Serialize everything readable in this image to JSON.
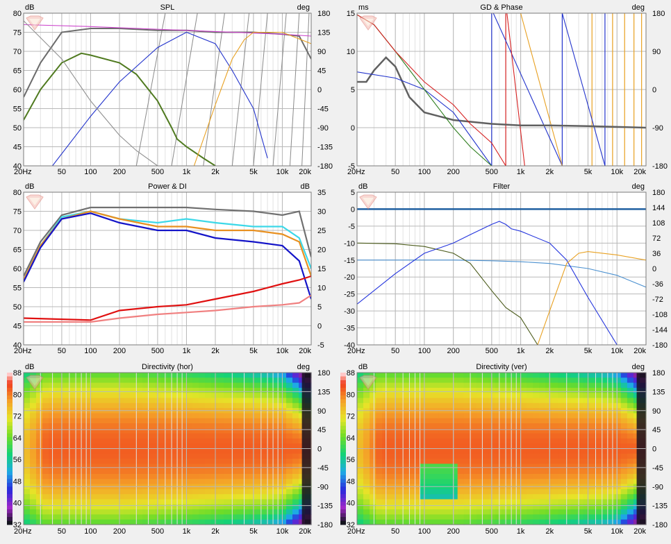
{
  "xticks": [
    "20Hz",
    "50",
    "100",
    "200",
    "500",
    "1k",
    "2k",
    "5k",
    "10k",
    "20k"
  ],
  "panels": {
    "spl": {
      "title": "SPL",
      "left_unit": "dB",
      "right_unit": "deg",
      "left_ticks": [
        "80",
        "75",
        "70",
        "65",
        "60",
        "55",
        "50",
        "45",
        "40"
      ],
      "right_ticks": [
        "180",
        "135",
        "90",
        "45",
        "0",
        "-45",
        "-90",
        "-135",
        "-180"
      ]
    },
    "gd": {
      "title": "GD & Phase",
      "left_unit": "ms",
      "right_unit": "deg",
      "left_ticks": [
        "15",
        "10",
        "5",
        "0",
        "-5"
      ],
      "right_ticks": [
        "180",
        "90",
        "0",
        "-90",
        "-180"
      ]
    },
    "power": {
      "title": "Power & DI",
      "left_unit": "dB",
      "right_unit": "dB",
      "left_ticks": [
        "80",
        "75",
        "70",
        "65",
        "60",
        "55",
        "50",
        "45",
        "40"
      ],
      "right_ticks": [
        "35",
        "30",
        "25",
        "20",
        "15",
        "10",
        "5",
        "0",
        "-5"
      ]
    },
    "filter": {
      "title": "Filter",
      "left_unit": "dB",
      "right_unit": "deg",
      "left_ticks": [
        "5",
        "0",
        "-5",
        "-10",
        "-15",
        "-20",
        "-25",
        "-30",
        "-35",
        "-40"
      ],
      "right_ticks": [
        "180",
        "144",
        "108",
        "72",
        "36",
        "0",
        "-36",
        "-72",
        "-108",
        "-144",
        "-180"
      ]
    },
    "dirh": {
      "title": "Directivity (hor)",
      "left_unit": "dB",
      "right_unit": "deg",
      "left_ticks": [
        "88",
        "80",
        "72",
        "64",
        "56",
        "48",
        "40",
        "32"
      ],
      "right_ticks": [
        "180",
        "135",
        "90",
        "45",
        "0",
        "-45",
        "-90",
        "-135",
        "-180"
      ]
    },
    "dirv": {
      "title": "Directivity (ver)",
      "left_unit": "dB",
      "right_unit": "deg",
      "left_ticks": [
        "88",
        "80",
        "72",
        "64",
        "56",
        "48",
        "40",
        "32"
      ],
      "right_ticks": [
        "180",
        "135",
        "90",
        "45",
        "0",
        "-45",
        "-90",
        "-135",
        "-180"
      ]
    }
  },
  "chart_data": [
    {
      "type": "line",
      "title": "SPL",
      "xscale": "log",
      "xlim": [
        20,
        20000
      ],
      "ylabel": "dB",
      "ylim": [
        40,
        80
      ],
      "y2label": "deg",
      "y2lim": [
        -180,
        180
      ],
      "series": [
        {
          "color": "#6b6b6b",
          "x": [
            20,
            30,
            50,
            100,
            200,
            500,
            1000,
            2000,
            5000,
            10000,
            15000,
            20000
          ],
          "y": [
            58,
            67,
            75,
            76,
            76,
            75.5,
            75.5,
            75,
            75,
            74.5,
            74,
            68
          ]
        },
        {
          "color": "#4f7a1f",
          "x": [
            20,
            30,
            50,
            80,
            100,
            200,
            300,
            500,
            700,
            800,
            1000,
            1500,
            2000
          ],
          "y": [
            52,
            60,
            67,
            69.5,
            69,
            67,
            64,
            57,
            50,
            47,
            45,
            42,
            40
          ]
        },
        {
          "color": "#cc44cc",
          "x": [
            20,
            100,
            1000,
            10000,
            20000
          ],
          "y": [
            77,
            76.5,
            75.5,
            74.5,
            74
          ]
        },
        {
          "color": "#2233cc",
          "x": [
            40,
            100,
            200,
            500,
            1000,
            2000,
            3000,
            5000,
            7000
          ],
          "y": [
            40,
            53,
            62,
            71,
            75,
            72,
            65,
            55,
            42
          ]
        },
        {
          "color": "#e8a020",
          "x": [
            1200,
            2000,
            3000,
            4000,
            5000,
            10000,
            20000
          ],
          "y": [
            40,
            56,
            68,
            73,
            75,
            75,
            72
          ]
        },
        {
          "color": "#909090",
          "x": [
            20,
            50,
            100,
            200,
            300,
            500
          ],
          "y": [
            78,
            68,
            57,
            48,
            44,
            40
          ]
        }
      ]
    },
    {
      "type": "line",
      "title": "GD & Phase",
      "xscale": "log",
      "xlim": [
        20,
        20000
      ],
      "ylabel": "ms",
      "ylim": [
        -5,
        15
      ],
      "y2label": "deg",
      "y2lim": [
        -180,
        180
      ],
      "series": [
        {
          "color": "#606060",
          "x": [
            20,
            25,
            30,
            40,
            50,
            70,
            100,
            200,
            500,
            1000,
            2000,
            5000,
            10000,
            20000
          ],
          "y": [
            6,
            6,
            7.5,
            9.2,
            8,
            4,
            2,
            1,
            0.5,
            0.3,
            0.3,
            0.2,
            0.1,
            0
          ]
        },
        {
          "color": "#2233cc",
          "x": [
            20,
            50,
            100,
            200,
            500
          ],
          "y": [
            7.3,
            6.5,
            5,
            2,
            -5
          ]
        },
        {
          "color": "#2e7d1e",
          "x": [
            20,
            30,
            50,
            100,
            200,
            300,
            500
          ],
          "y": [
            14.8,
            13.5,
            10,
            5,
            0,
            -2.5,
            -5
          ]
        },
        {
          "color": "#d62020",
          "x": [
            20,
            30,
            50,
            100,
            200,
            300,
            500,
            700
          ],
          "y": [
            14.8,
            13.5,
            10,
            6,
            3,
            0.5,
            -2,
            -5
          ]
        }
      ]
    },
    {
      "type": "line",
      "title": "Power & DI",
      "xscale": "log",
      "xlim": [
        20,
        20000
      ],
      "ylabel": "dB",
      "ylim": [
        40,
        80
      ],
      "y2label": "dB",
      "y2lim": [
        -5,
        35
      ],
      "series": [
        {
          "color": "#707070",
          "x": [
            20,
            30,
            50,
            100,
            200,
            500,
            1000,
            2000,
            5000,
            10000,
            15000,
            20000
          ],
          "y": [
            58,
            67,
            74,
            76,
            76,
            76,
            76,
            75.5,
            75,
            74,
            75,
            63
          ]
        },
        {
          "color": "#3cd8e8",
          "x": [
            20,
            30,
            50,
            100,
            200,
            500,
            1000,
            2000,
            5000,
            10000,
            15000,
            20000
          ],
          "y": [
            57,
            66,
            73.5,
            75,
            73,
            72,
            73,
            72,
            71,
            71,
            68,
            60
          ]
        },
        {
          "color": "#e89020",
          "x": [
            20,
            30,
            50,
            100,
            200,
            500,
            1000,
            2000,
            5000,
            10000,
            15000,
            20000
          ],
          "y": [
            57,
            66,
            73,
            75,
            73,
            71,
            71,
            70,
            70,
            69,
            67,
            58
          ]
        },
        {
          "color": "#1414c8",
          "x": [
            20,
            30,
            50,
            100,
            200,
            500,
            1000,
            2000,
            5000,
            10000,
            15000,
            20000
          ],
          "y": [
            56.5,
            65.5,
            73,
            74.5,
            72,
            70,
            70,
            68,
            67,
            66,
            62,
            52
          ]
        },
        {
          "color": "#e01010",
          "x": [
            20,
            100,
            200,
            500,
            1000,
            2000,
            5000,
            10000,
            15000,
            20000
          ],
          "y": [
            47,
            46.5,
            49,
            50,
            50.5,
            52,
            54,
            56,
            57,
            58
          ]
        },
        {
          "color": "#f08080",
          "x": [
            20,
            100,
            200,
            500,
            1000,
            2000,
            5000,
            10000,
            15000,
            20000
          ],
          "y": [
            46,
            46,
            47,
            48,
            48.5,
            49,
            50,
            50.5,
            51,
            53
          ]
        }
      ]
    },
    {
      "type": "line",
      "title": "Filter",
      "xscale": "log",
      "xlim": [
        20,
        20000
      ],
      "ylabel": "dB",
      "ylim": [
        -40,
        5
      ],
      "y2label": "deg",
      "y2lim": [
        -180,
        180
      ],
      "series": [
        {
          "color": "#1f5fa0",
          "x": [
            20,
            20000
          ],
          "y": [
            0,
            0
          ]
        },
        {
          "color": "#4a90d0",
          "x": [
            20,
            200,
            500,
            1000,
            2000,
            5000,
            10000,
            20000
          ],
          "y": [
            -15,
            -15,
            -15.2,
            -15.5,
            -16,
            -17.5,
            -19.5,
            -23
          ]
        },
        {
          "color": "#4a5a1a",
          "x": [
            20,
            50,
            100,
            200,
            300,
            500,
            700,
            1000,
            1500
          ],
          "y": [
            -10,
            -10.2,
            -11,
            -13,
            -16,
            -24,
            -29,
            -32,
            -40
          ]
        },
        {
          "color": "#2233dd",
          "x": [
            20,
            50,
            100,
            200,
            300,
            500,
            600,
            700,
            800,
            1000,
            2000,
            3000,
            5000,
            10000
          ],
          "y": [
            -28,
            -19,
            -13,
            -10,
            -7.5,
            -4.5,
            -3.6,
            -4.5,
            -5.8,
            -6.5,
            -10,
            -15,
            -26,
            -40
          ]
        },
        {
          "color": "#e8a020",
          "x": [
            1500,
            2000,
            3000,
            4000,
            5000,
            10000,
            20000
          ],
          "y": [
            -40,
            -30,
            -16,
            -13,
            -12.5,
            -13.5,
            -15
          ]
        }
      ]
    },
    {
      "type": "heatmap",
      "title": "Directivity (hor)",
      "xscale": "log",
      "xlim": [
        20,
        20000
      ],
      "ylabel": "dB",
      "zlim": [
        32,
        88
      ],
      "y2label": "deg",
      "y2lim": [
        -180,
        180
      ]
    },
    {
      "type": "heatmap",
      "title": "Directivity (ver)",
      "xscale": "log",
      "xlim": [
        20,
        20000
      ],
      "ylabel": "dB",
      "zlim": [
        32,
        88
      ],
      "y2label": "deg",
      "y2lim": [
        -180,
        180
      ]
    }
  ]
}
